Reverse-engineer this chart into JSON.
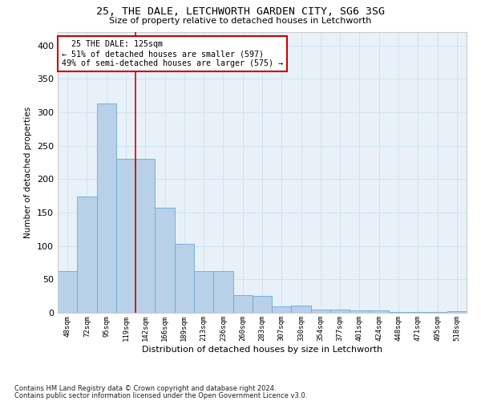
{
  "title1": "25, THE DALE, LETCHWORTH GARDEN CITY, SG6 3SG",
  "title2": "Size of property relative to detached houses in Letchworth",
  "xlabel": "Distribution of detached houses by size in Letchworth",
  "ylabel": "Number of detached properties",
  "categories": [
    "48sqm",
    "72sqm",
    "95sqm",
    "119sqm",
    "142sqm",
    "166sqm",
    "189sqm",
    "213sqm",
    "236sqm",
    "260sqm",
    "283sqm",
    "307sqm",
    "330sqm",
    "354sqm",
    "377sqm",
    "401sqm",
    "424sqm",
    "448sqm",
    "471sqm",
    "495sqm",
    "518sqm"
  ],
  "values": [
    63,
    174,
    313,
    230,
    230,
    157,
    103,
    62,
    62,
    27,
    25,
    10,
    11,
    5,
    5,
    4,
    4,
    1,
    1,
    1,
    2
  ],
  "bar_color": "#b8d0e8",
  "bar_edge_color": "#6aaad4",
  "grid_color": "#d0e4f0",
  "vline_x": 3.5,
  "vline_color": "#cc0000",
  "annotation_text": "  25 THE DALE: 125sqm\n← 51% of detached houses are smaller (597)\n49% of semi-detached houses are larger (575) →",
  "annotation_box_color": "#ffffff",
  "annotation_box_edge": "#cc0000",
  "footer1": "Contains HM Land Registry data © Crown copyright and database right 2024.",
  "footer2": "Contains public sector information licensed under the Open Government Licence v3.0.",
  "ylim": [
    0,
    420
  ],
  "yticks": [
    0,
    50,
    100,
    150,
    200,
    250,
    300,
    350,
    400
  ],
  "background_color": "#e8f0f8"
}
